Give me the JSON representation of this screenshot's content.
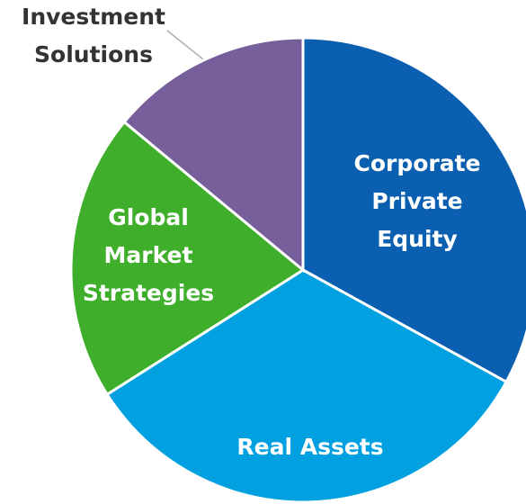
{
  "chart_data": {
    "type": "pie",
    "categories": [
      "Corporate Private Equity",
      "Real Assets",
      "Global Market Strategies",
      "Investment Solutions"
    ],
    "values": [
      33,
      33,
      20,
      14
    ],
    "colors": [
      "#0a5fb0",
      "#00a0e1",
      "#3fae2a",
      "#775f9b"
    ],
    "start_angle": 0,
    "direction": "clockwise"
  }
}
